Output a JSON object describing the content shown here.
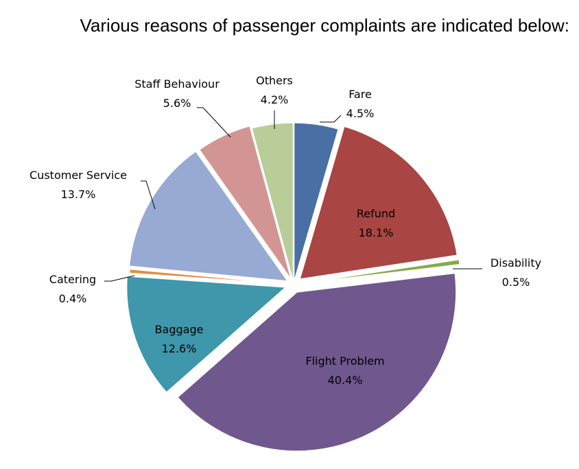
{
  "chart_data": {
    "type": "pie",
    "title": "Various reasons of passenger complaints are indicated below:",
    "unit": "%",
    "slices": [
      {
        "label": "Fare",
        "value": 4.5,
        "display": "4.5%",
        "color": "#4a6fa5"
      },
      {
        "label": "Refund",
        "value": 18.1,
        "display": "18.1%",
        "color": "#a94543"
      },
      {
        "label": "Disability",
        "value": 0.5,
        "display": "0.5%",
        "color": "#87a94a"
      },
      {
        "label": "Flight Problem",
        "value": 40.4,
        "display": "40.4%",
        "color": "#70578d"
      },
      {
        "label": "Baggage",
        "value": 12.6,
        "display": "12.6%",
        "color": "#3e97aa"
      },
      {
        "label": "Catering",
        "value": 0.4,
        "display": "0.4%",
        "color": "#e68a3c"
      },
      {
        "label": "Customer Service",
        "value": 13.7,
        "display": "13.7%",
        "color": "#96aad3"
      },
      {
        "label": "Staff Behaviour",
        "value": 5.6,
        "display": "5.6%",
        "color": "#d39593"
      },
      {
        "label": "Others",
        "value": 4.2,
        "display": "4.2%",
        "color": "#b8cd98"
      }
    ],
    "legend": "none",
    "exploded": true
  }
}
